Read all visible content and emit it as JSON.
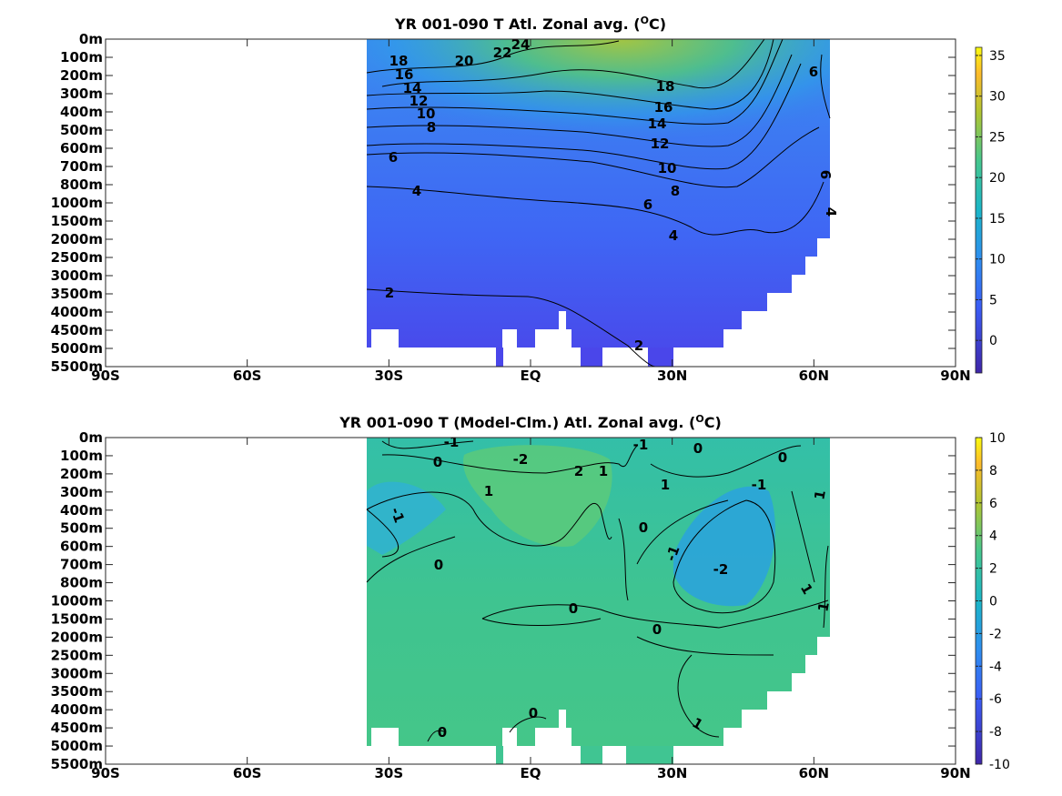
{
  "chart_data": [
    {
      "type": "heatmap",
      "title": "YR 001-090 T Atl. Zonal avg. (",
      "title_sup": "O",
      "title_tail": "C)",
      "x_ticks": [
        "90S",
        "60S",
        "30S",
        "EQ",
        "30N",
        "60N",
        "90N"
      ],
      "x_values": [
        -90,
        -60,
        -30,
        0,
        30,
        60,
        90
      ],
      "xlim": [
        -90,
        90
      ],
      "depth_ticks": [
        "0m",
        "100m",
        "200m",
        "300m",
        "400m",
        "500m",
        "600m",
        "700m",
        "800m",
        "1000m",
        "1500m",
        "2000m",
        "2500m",
        "3000m",
        "3500m",
        "4000m",
        "4500m",
        "5000m",
        "5500m"
      ],
      "data_lat_range": [
        -34,
        64
      ],
      "colorbar": {
        "ticks": [
          "35",
          "30",
          "25",
          "20",
          "15",
          "10",
          "5",
          "0"
        ],
        "values": [
          35,
          30,
          25,
          20,
          15,
          10,
          5,
          0
        ],
        "min": -4,
        "max": 36
      },
      "contour_labels": [
        "24",
        "22",
        "20",
        "18",
        "16",
        "14",
        "12",
        "10",
        "8",
        "6",
        "18",
        "16",
        "14",
        "12",
        "10",
        "8",
        "6",
        "4",
        "6",
        "6",
        "4",
        "4",
        "2",
        "2"
      ],
      "colors": {
        "warm": "#8ec83c",
        "mid": "#2fb8b0",
        "cool": "#3d6ff2",
        "deep": "#4a4ff0"
      }
    },
    {
      "type": "heatmap",
      "title": "YR 001-090 T (Model-Clm.) Atl. Zonal avg. (",
      "title_sup": "O",
      "title_tail": "C)",
      "x_ticks": [
        "90S",
        "60S",
        "30S",
        "EQ",
        "30N",
        "60N",
        "90N"
      ],
      "x_values": [
        -90,
        -60,
        -30,
        0,
        30,
        60,
        90
      ],
      "xlim": [
        -90,
        90
      ],
      "depth_ticks": [
        "0m",
        "100m",
        "200m",
        "300m",
        "400m",
        "500m",
        "600m",
        "700m",
        "800m",
        "1000m",
        "1500m",
        "2000m",
        "2500m",
        "3000m",
        "3500m",
        "4000m",
        "4500m",
        "5000m",
        "5500m"
      ],
      "data_lat_range": [
        -34,
        64
      ],
      "colorbar": {
        "ticks": [
          "10",
          "8",
          "6",
          "4",
          "2",
          "0",
          "-2",
          "-4",
          "-6",
          "-8",
          "-10"
        ],
        "values": [
          10,
          8,
          6,
          4,
          2,
          0,
          -2,
          -4,
          -6,
          -8,
          -10
        ],
        "min": -10,
        "max": 10
      },
      "contour_labels": [
        "-1",
        "0",
        "-2",
        "2",
        "1",
        "-1",
        "0",
        "1",
        "0",
        "-1",
        "1",
        "-1",
        "1",
        "0",
        "0",
        "-1",
        "-2",
        "1",
        "1",
        "0",
        "0",
        "0",
        "1",
        "0",
        "0"
      ],
      "colors": {
        "base": "#2fbfa0",
        "warm": "#6ccf6a",
        "cool": "#2a9ee0"
      }
    }
  ]
}
